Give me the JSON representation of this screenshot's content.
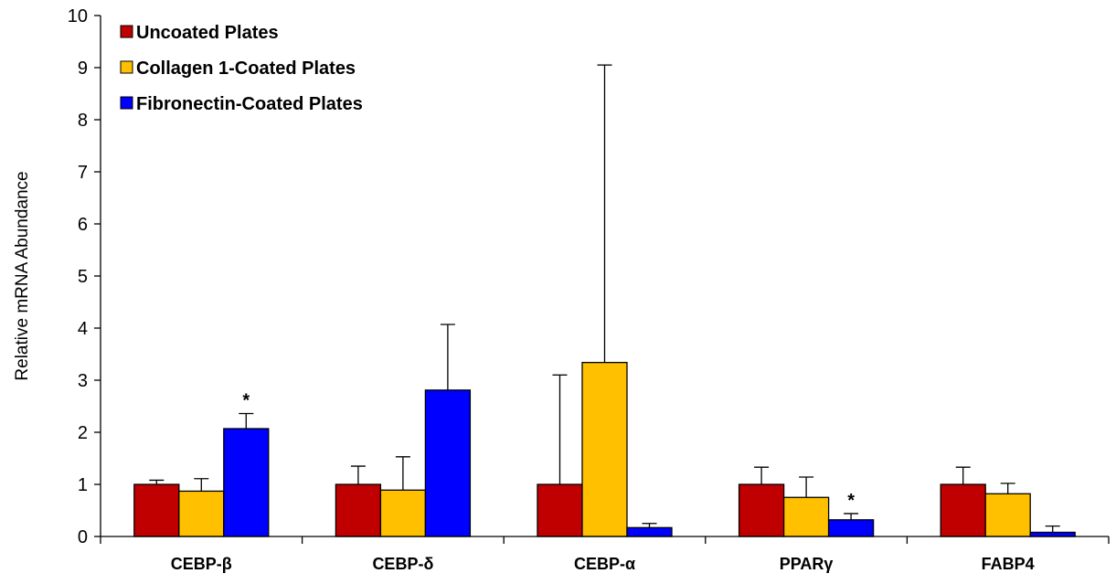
{
  "chart_data": {
    "type": "bar",
    "title": "",
    "xlabel": "",
    "ylabel": "Relative mRNA Abundance",
    "ylim": [
      0,
      10
    ],
    "yticks": [
      0,
      1,
      2,
      3,
      4,
      5,
      6,
      7,
      8,
      9,
      10
    ],
    "categories": [
      "CEBP-β",
      "CEBP-δ",
      "CEBP-α",
      "PPARγ",
      "FABP4"
    ],
    "series": [
      {
        "name": "Uncoated Plates",
        "color": "#c00000",
        "values": [
          1.0,
          1.0,
          1.0,
          1.0,
          1.0
        ],
        "errors": [
          0.08,
          0.35,
          2.1,
          0.33,
          0.33
        ]
      },
      {
        "name": "Collagen 1-Coated Plates",
        "color": "#ffc000",
        "values": [
          0.87,
          0.89,
          3.34,
          0.75,
          0.82
        ],
        "errors": [
          0.24,
          0.64,
          5.71,
          0.39,
          0.2
        ]
      },
      {
        "name": "Fibronectin-Coated Plates",
        "color": "#0000ff",
        "values": [
          2.07,
          2.81,
          0.17,
          0.32,
          0.08
        ],
        "errors": [
          0.29,
          1.26,
          0.08,
          0.12,
          0.12
        ]
      }
    ],
    "significance": [
      {
        "category": "CEBP-β",
        "series": "Fibronectin-Coated Plates",
        "label": "*"
      },
      {
        "category": "PPARγ",
        "series": "Fibronectin-Coated Plates",
        "label": "*"
      }
    ],
    "legend_position": "top-left",
    "grid": false
  }
}
